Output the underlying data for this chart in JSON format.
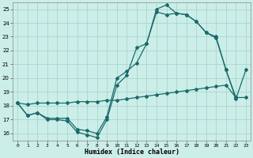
{
  "xlabel": "Humidex (Indice chaleur)",
  "bg_color": "#cceee8",
  "grid_color": "#aad4ce",
  "line_color": "#1a6b6b",
  "xlim": [
    -0.5,
    23.5
  ],
  "ylim": [
    15.5,
    25.5
  ],
  "xticks": [
    0,
    1,
    2,
    3,
    4,
    5,
    6,
    7,
    8,
    9,
    10,
    11,
    12,
    13,
    14,
    15,
    16,
    17,
    18,
    19,
    20,
    21,
    22,
    23
  ],
  "yticks": [
    16,
    17,
    18,
    19,
    20,
    21,
    22,
    23,
    24,
    25
  ],
  "series1_x": [
    0,
    1,
    2,
    3,
    4,
    5,
    6,
    7,
    8,
    9,
    10,
    11,
    12,
    13,
    14,
    15,
    16,
    17,
    18,
    19,
    20,
    21,
    22
  ],
  "series1_y": [
    18.2,
    17.3,
    17.5,
    17.0,
    17.0,
    16.9,
    16.1,
    15.9,
    15.7,
    17.0,
    19.5,
    20.2,
    22.2,
    22.5,
    25.0,
    25.3,
    24.7,
    24.6,
    24.1,
    23.3,
    23.0,
    20.6,
    18.6
  ],
  "series2_x": [
    0,
    1,
    2,
    3,
    4,
    5,
    6,
    7,
    8,
    9,
    10,
    11,
    12,
    13,
    14,
    15,
    16,
    17,
    18,
    19,
    20,
    21,
    22,
    23
  ],
  "series2_y": [
    18.2,
    17.3,
    17.5,
    17.1,
    17.1,
    17.1,
    16.3,
    16.2,
    16.0,
    17.2,
    20.0,
    20.5,
    21.1,
    22.5,
    24.8,
    24.6,
    24.7,
    24.6,
    24.1,
    23.3,
    22.9,
    20.6,
    18.5,
    20.6
  ],
  "series3_x": [
    0,
    1,
    2,
    3,
    4,
    5,
    6,
    7,
    8,
    9,
    10,
    11,
    12,
    13,
    14,
    15,
    16,
    17,
    18,
    19,
    20,
    21,
    22,
    23
  ],
  "series3_y": [
    18.2,
    18.1,
    18.2,
    18.2,
    18.2,
    18.2,
    18.3,
    18.3,
    18.3,
    18.4,
    18.4,
    18.5,
    18.6,
    18.7,
    18.8,
    18.9,
    19.0,
    19.1,
    19.2,
    19.3,
    19.4,
    19.5,
    18.6,
    18.6
  ]
}
